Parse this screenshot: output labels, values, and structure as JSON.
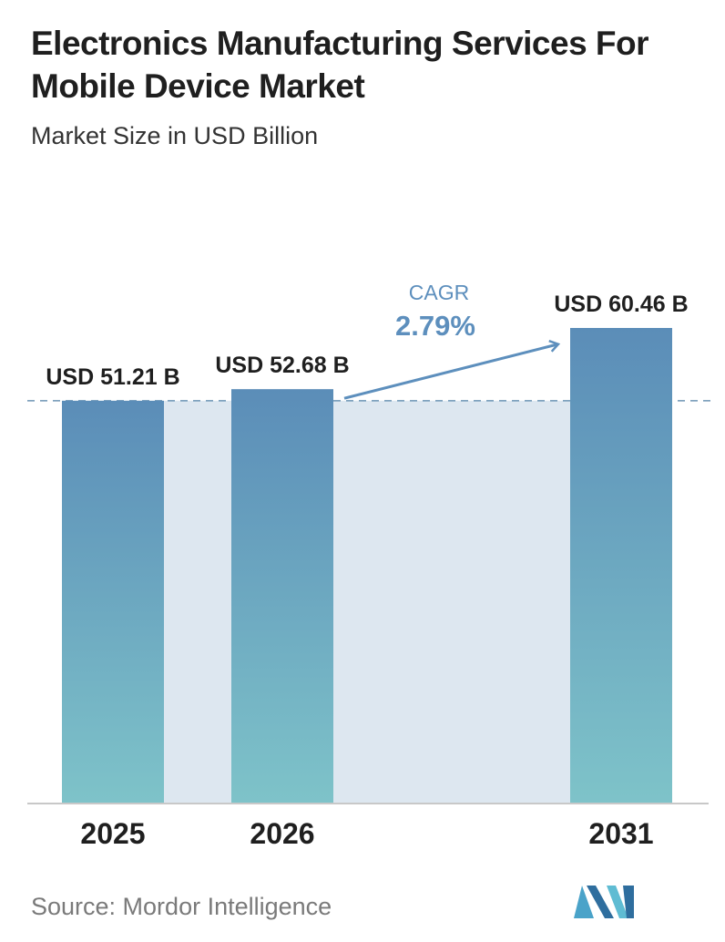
{
  "header": {
    "title": "Electronics Manufacturing Services For Mobile Device Market",
    "subtitle": "Market Size in USD Billion"
  },
  "chart_data": {
    "type": "bar",
    "categories": [
      "2025",
      "2026",
      "2031"
    ],
    "values": [
      51.21,
      52.68,
      60.46
    ],
    "value_labels": [
      "USD 51.21 B",
      "USD 52.68 B",
      "USD 60.46 B"
    ],
    "title": "Electronics Manufacturing Services For Mobile Device Market",
    "ylabel": "Market Size in USD Billion",
    "grid": false,
    "cagr": {
      "label": "CAGR",
      "value": "2.79%"
    },
    "colors": {
      "bar_top": "#5b8db8",
      "bar_bottom": "#7ec3c9",
      "band": "#dde7f0",
      "cagr": "#5d8fbd",
      "dashed": "#6d95b5"
    }
  },
  "footer": {
    "source": "Source:  Mordor Intelligence",
    "logo_icon": "mordor-intelligence-logo-icon"
  }
}
